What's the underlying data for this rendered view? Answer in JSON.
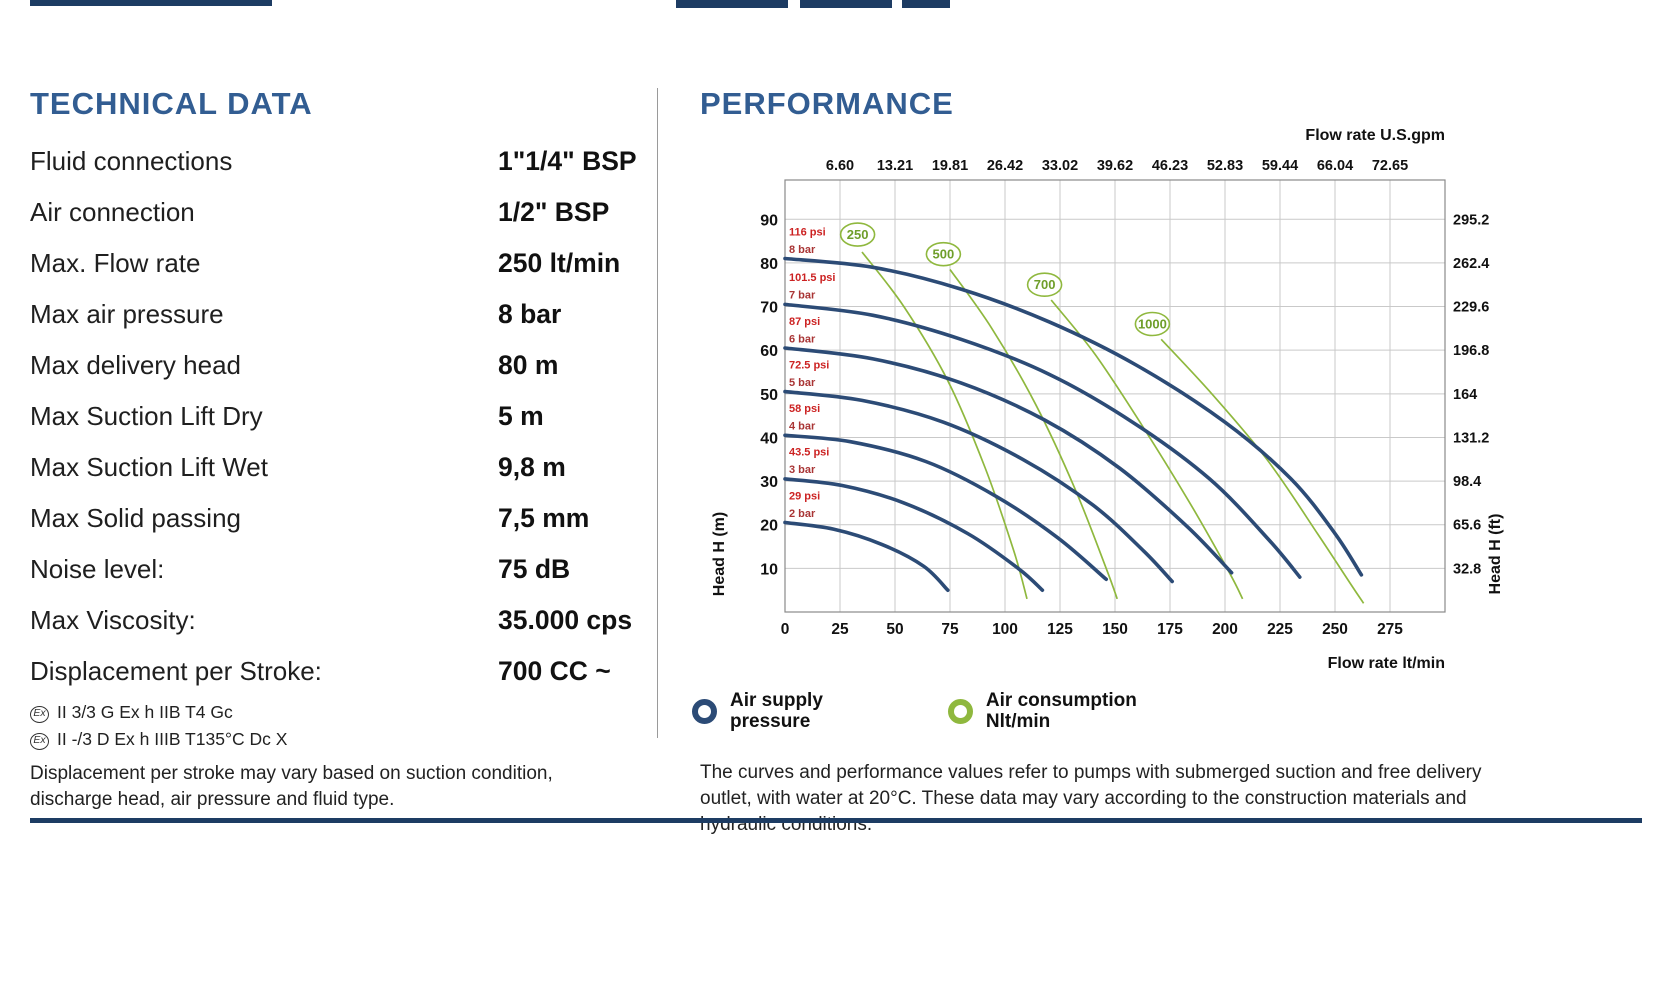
{
  "tech": {
    "title": "TECHNICAL DATA",
    "rows": [
      {
        "label": "Fluid connections",
        "value": "1\"1/4\" BSP"
      },
      {
        "label": "Air connection",
        "value": "1/2\" BSP"
      },
      {
        "label": "Max. Flow rate",
        "value": "250 lt/min"
      },
      {
        "label": "Max air pressure",
        "value": "8 bar"
      },
      {
        "label": "Max delivery head",
        "value": "80 m"
      },
      {
        "label": "Max Suction Lift Dry",
        "value": "5 m"
      },
      {
        "label": "Max Suction Lift Wet",
        "value": "9,8 m"
      },
      {
        "label": "Max Solid passing",
        "value": "7,5 mm"
      },
      {
        "label": "Noise level:",
        "value": "75 dB"
      },
      {
        "label": "Max Viscosity:",
        "value": "35.000 cps"
      },
      {
        "label": "Displacement per Stroke:",
        "value": "700 CC ~"
      }
    ],
    "ex_lines": [
      "II 3/3 G Ex h IIB T4 Gc",
      "II -/3 D Ex h IIIB T135°C Dc X"
    ],
    "note": "Displacement per stroke may vary based on suction condition, discharge head, air pressure and fluid type."
  },
  "performance": {
    "title": "PERFORMANCE",
    "legend": [
      {
        "line1": "Air supply",
        "line2": "pressure",
        "color": "#2c4b76"
      },
      {
        "line1": "Air consumption",
        "line2": "Nlt/min",
        "color": "#8fb83e"
      }
    ],
    "note": "The curves and performance values refer to pumps with submerged suction and free delivery outlet, with water at 20°C. These data may vary according to the construction materials and hydraulic conditions."
  },
  "chart_data": {
    "type": "line",
    "x_axis": {
      "label_top": "Flow rate U.S.gpm",
      "label_bottom": "Flow rate  lt/min",
      "range": [
        0,
        300
      ],
      "grid_step": 25,
      "ticks_top": [
        "6.60",
        "13.21",
        "19.81",
        "26.42",
        "33.02",
        "39.62",
        "46.23",
        "52.83",
        "59.44",
        "66.04",
        "72.65"
      ],
      "ticks_bottom": [
        "0",
        "25",
        "50",
        "75",
        "100",
        "125",
        "150",
        "175",
        "200",
        "225",
        "250",
        "275"
      ]
    },
    "y_axis": {
      "label_left": "Head H (m)",
      "label_right": "Head H (ft)",
      "range": [
        0,
        99
      ],
      "grid_step": 10,
      "ticks_left": [
        "90",
        "80",
        "70",
        "60",
        "50",
        "40",
        "30",
        "20",
        "10"
      ],
      "ticks_right": [
        "295.2",
        "262.4",
        "229.6",
        "196.8",
        "164",
        "131.2",
        "98.4",
        "65.6",
        "32.8"
      ]
    },
    "series_pressure": {
      "name": "Air supply pressure",
      "color": "#2c4b76",
      "label_color_psi": "#cc2222",
      "label_color_bar": "#a93535",
      "curves": [
        {
          "label_psi": "116 psi",
          "label_bar": "8 bar",
          "points": [
            [
              0,
              81
            ],
            [
              40,
              79
            ],
            [
              80,
              74
            ],
            [
              120,
              66.5
            ],
            [
              160,
              56.5
            ],
            [
              200,
              43.5
            ],
            [
              230,
              30.5
            ],
            [
              250,
              18
            ],
            [
              262,
              8.5
            ]
          ]
        },
        {
          "label_psi": "101.5 psi",
          "label_bar": "7 bar",
          "points": [
            [
              0,
              70.5
            ],
            [
              40,
              68
            ],
            [
              80,
              62.5
            ],
            [
              120,
              54.5
            ],
            [
              158,
              43.5
            ],
            [
              193,
              30.5
            ],
            [
              220,
              16.5
            ],
            [
              234,
              8
            ]
          ]
        },
        {
          "label_psi": "87 psi",
          "label_bar": "6 bar",
          "points": [
            [
              0,
              60.5
            ],
            [
              40,
              58
            ],
            [
              80,
              52.5
            ],
            [
              118,
              44
            ],
            [
              152,
              33
            ],
            [
              183,
              19.5
            ],
            [
              203,
              9
            ]
          ]
        },
        {
          "label_psi": "72.5 psi",
          "label_bar": "5 bar",
          "points": [
            [
              0,
              50.5
            ],
            [
              35,
              48.5
            ],
            [
              72,
              43.5
            ],
            [
              108,
              35
            ],
            [
              140,
              24.5
            ],
            [
              163,
              14
            ],
            [
              176,
              7
            ]
          ]
        },
        {
          "label_psi": "58 psi",
          "label_bar": "4 bar",
          "points": [
            [
              0,
              40.5
            ],
            [
              30,
              39
            ],
            [
              64,
              34.5
            ],
            [
              96,
              26.5
            ],
            [
              124,
              17
            ],
            [
              146,
              7.5
            ]
          ]
        },
        {
          "label_psi": "43.5 psi",
          "label_bar": "3 bar",
          "points": [
            [
              0,
              30.5
            ],
            [
              26,
              29
            ],
            [
              54,
              25
            ],
            [
              83,
              18
            ],
            [
              106,
              10
            ],
            [
              117,
              5
            ]
          ]
        },
        {
          "label_psi": "29 psi",
          "label_bar": "2 bar",
          "points": [
            [
              0,
              20.5
            ],
            [
              22,
              19
            ],
            [
              44,
              15.5
            ],
            [
              63,
              10.5
            ],
            [
              74,
              5
            ]
          ]
        }
      ]
    },
    "series_consumption": {
      "name": "Air consumption Nlt/min",
      "color": "#8fb83e",
      "label_color": "#6f9e2a",
      "curves": [
        {
          "label": "250",
          "label_pos": [
            33,
            86.5
          ],
          "points": [
            [
              35,
              82.5
            ],
            [
              54,
              70
            ],
            [
              74,
              53
            ],
            [
              91,
              33
            ],
            [
              104,
              14
            ],
            [
              110,
              3
            ]
          ]
        },
        {
          "label": "500",
          "label_pos": [
            72,
            82
          ],
          "points": [
            [
              75,
              78.5
            ],
            [
              94,
              65
            ],
            [
              114,
              47.5
            ],
            [
              132,
              28
            ],
            [
              146,
              10
            ],
            [
              151,
              3
            ]
          ]
        },
        {
          "label": "700",
          "label_pos": [
            118,
            75
          ],
          "points": [
            [
              121,
              71.5
            ],
            [
              141,
              59
            ],
            [
              162,
              43
            ],
            [
              184,
              25
            ],
            [
              202,
              9
            ],
            [
              208,
              3
            ]
          ]
        },
        {
          "label": "1000",
          "label_pos": [
            167,
            66
          ],
          "points": [
            [
              171,
              62.5
            ],
            [
              194,
              50
            ],
            [
              219,
              35
            ],
            [
              242,
              18
            ],
            [
              257,
              6.5
            ],
            [
              263,
              2
            ]
          ]
        }
      ]
    }
  }
}
